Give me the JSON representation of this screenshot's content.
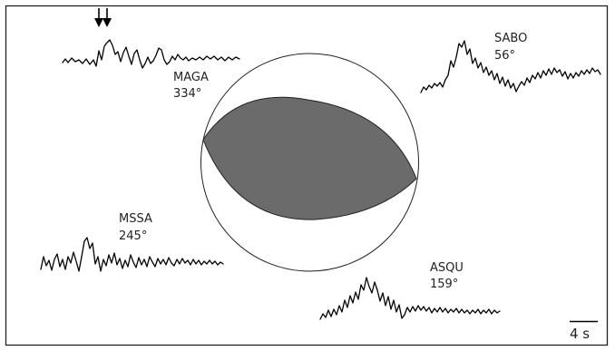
{
  "stations": [
    {
      "id": "maga",
      "name": "MAGA",
      "azimuth": "334°"
    },
    {
      "id": "sabo",
      "name": "SABO",
      "azimuth": "56°"
    },
    {
      "id": "mssa",
      "name": "MSSA",
      "azimuth": "245°"
    },
    {
      "id": "asqu",
      "name": "ASQU",
      "azimuth": "159°"
    }
  ],
  "scale_bar": {
    "label": "4 s"
  },
  "colors": {
    "frame": "#222222",
    "compressional_quadrant": "#6b6b6b",
    "trace": "#000000",
    "text": "#222222"
  },
  "icons": {
    "arrival_marker": "double-down-arrow-icon"
  }
}
